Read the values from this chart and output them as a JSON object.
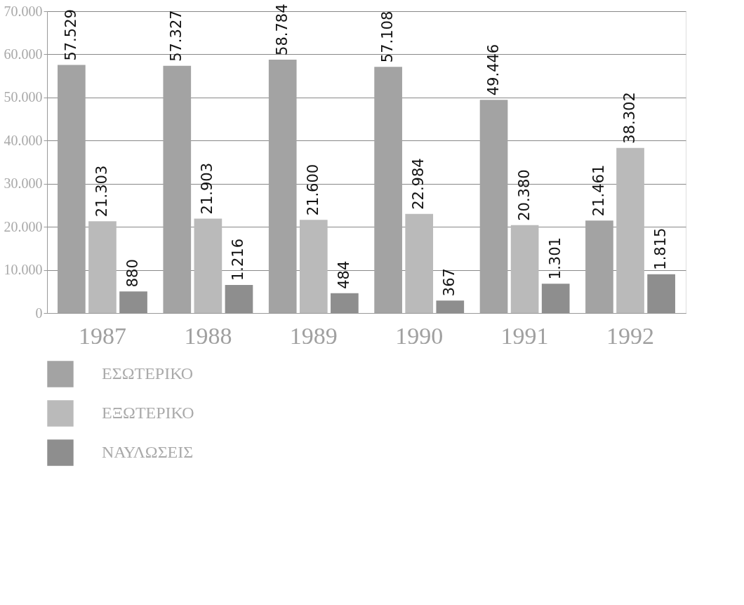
{
  "chart_data": {
    "type": "bar",
    "categories": [
      "1987",
      "1988",
      "1989",
      "1990",
      "1991",
      "1992"
    ],
    "series": [
      {
        "name": "ΕΣΩΤΕΡΙΚΟ",
        "color": "#a3a3a3",
        "values": [
          57529,
          57327,
          58784,
          57108,
          49446,
          21461
        ],
        "value_labels": [
          "57.529",
          "57.327",
          "58.784",
          "57.108",
          "49.446",
          "21.461"
        ]
      },
      {
        "name": "ΕΞΩΤΕΡΙΚΟ",
        "color": "#bababa",
        "values": [
          21303,
          21903,
          21600,
          22984,
          20380,
          38302
        ],
        "value_labels": [
          "21.303",
          "21.903",
          "21.600",
          "22.984",
          "20.380",
          "38.302"
        ]
      },
      {
        "name": "ΝΑΥΛΩΣΕΙΣ",
        "color": "#8e8e8e",
        "values": [
          5000,
          6500,
          4600,
          2900,
          6800,
          9000
        ]
      }
    ],
    "annotations": [
      "880",
      "1.216",
      "484",
      "367",
      "1.301",
      "1.815"
    ],
    "ylim": [
      0,
      70000
    ],
    "yticks": [
      {
        "value": 0,
        "label": "0"
      },
      {
        "value": 10000,
        "label": "10.000"
      },
      {
        "value": 20000,
        "label": "20.000"
      },
      {
        "value": 30000,
        "label": "30.000"
      },
      {
        "value": 40000,
        "label": "40.000"
      },
      {
        "value": 50000,
        "label": "50.000"
      },
      {
        "value": 60000,
        "label": "60.000"
      },
      {
        "value": 70000,
        "label": "70.000"
      }
    ],
    "grid": "y",
    "legend": "bottom"
  }
}
